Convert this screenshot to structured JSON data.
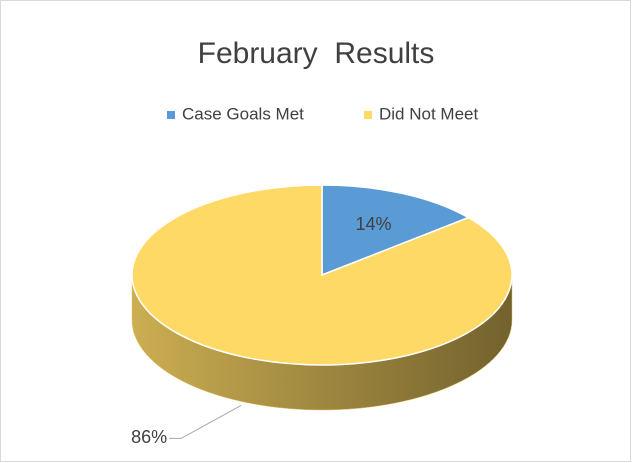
{
  "chart_data": {
    "type": "pie",
    "title": "February  Results",
    "categories": [
      "Case Goals Met",
      "Did Not Meet"
    ],
    "values": [
      14,
      86
    ],
    "value_labels": [
      "14%",
      "86%"
    ],
    "colors": [
      "#5b9bd5",
      "#ffd966"
    ],
    "legend": "top"
  }
}
